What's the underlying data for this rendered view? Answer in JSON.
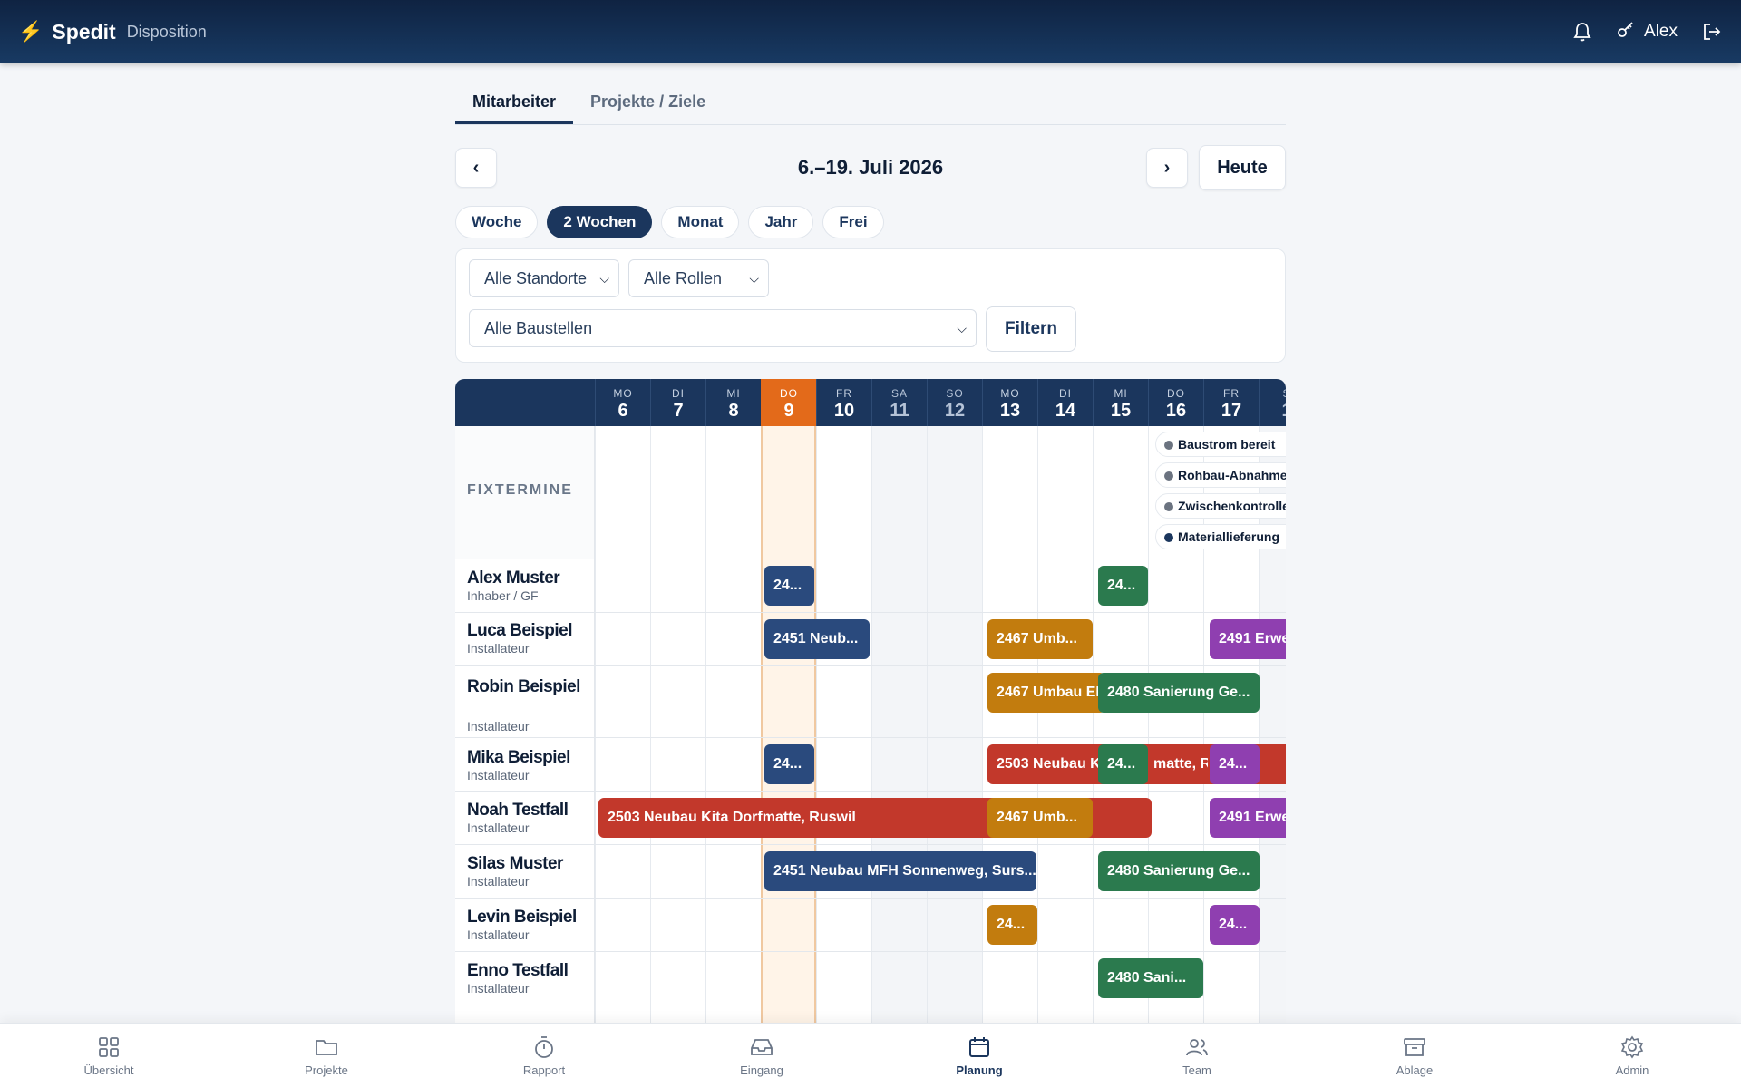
{
  "header": {
    "brand": "Spedit",
    "subtitle": "Disposition",
    "user": "Alex"
  },
  "tabs": [
    {
      "label": "Mitarbeiter"
    },
    {
      "label": "Projekte / Ziele"
    }
  ],
  "date_range": {
    "title": "6.–19. Juli 2026",
    "prev": "‹",
    "next": "›",
    "today": "Heute"
  },
  "ranges": [
    {
      "label": "Woche"
    },
    {
      "label": "2 Wochen"
    },
    {
      "label": "Monat"
    },
    {
      "label": "Jahr"
    },
    {
      "label": "Frei"
    }
  ],
  "filters": {
    "standorte": "Alle Standorte",
    "rollen": "Alle Rollen",
    "baustellen": "Alle Baustellen",
    "button": "Filtern"
  },
  "days": [
    {
      "dow": "MO",
      "day": "6"
    },
    {
      "dow": "DI",
      "day": "7"
    },
    {
      "dow": "MI",
      "day": "8"
    },
    {
      "dow": "DO",
      "day": "9"
    },
    {
      "dow": "FR",
      "day": "10"
    },
    {
      "dow": "SA",
      "day": "11"
    },
    {
      "dow": "SO",
      "day": "12"
    },
    {
      "dow": "MO",
      "day": "13"
    },
    {
      "dow": "DI",
      "day": "14"
    },
    {
      "dow": "MI",
      "day": "15"
    },
    {
      "dow": "DO",
      "day": "16"
    },
    {
      "dow": "FR",
      "day": "17"
    },
    {
      "dow": "S",
      "day": "1"
    }
  ],
  "fixtermine": {
    "label": "FIXTERMINE",
    "items": [
      {
        "label": "Baustrom bereit"
      },
      {
        "label": "Rohbau-Abnahme"
      },
      {
        "label": "Zwischenkontrolle"
      },
      {
        "label": "Materiallieferung"
      }
    ]
  },
  "rows": [
    {
      "name": "Alex Muster",
      "role": "Inhaber / GF"
    },
    {
      "name": "Luca Beispiel",
      "role": "Installateur"
    },
    {
      "name": "Robin Beispiel",
      "role": "Installateur"
    },
    {
      "name": "Mika Beispiel",
      "role": "Installateur"
    },
    {
      "name": "Noah Testfall",
      "role": "Installateur"
    },
    {
      "name": "Silas Muster",
      "role": "Installateur"
    },
    {
      "name": "Levin Beispiel",
      "role": "Installateur"
    },
    {
      "name": "Enno Testfall",
      "role": "Installateur"
    }
  ],
  "bars": {
    "r0a": "24...",
    "r0b": "24...",
    "r1a": "2451 Neub...",
    "r1b": "2467 Umb...",
    "r1c": "2491 Erwe",
    "r2a": "2467 Umbau EF",
    "r2b": "2480 Sanierung Ge...",
    "r3a": "24...",
    "r3b": "2503 Neubau K",
    "r3c": "24...",
    "r3d": "matte, Ru",
    "r3e": "24...",
    "r4a": "2503 Neubau Kita Dorfmatte, Ruswil",
    "r4b": "2467 Umb...",
    "r4c": "2491 Erwe",
    "r5a": "2451 Neubau MFH Sonnenweg, Surs...",
    "r5b": "2480 Sanierung Ge...",
    "r6a": "24...",
    "r6b": "24...",
    "r7a": "2480 Sani..."
  },
  "bottom_nav": [
    {
      "label": "Übersicht"
    },
    {
      "label": "Projekte"
    },
    {
      "label": "Rapport"
    },
    {
      "label": "Eingang"
    },
    {
      "label": "Planung"
    },
    {
      "label": "Team"
    },
    {
      "label": "Ablage"
    },
    {
      "label": "Admin"
    }
  ]
}
